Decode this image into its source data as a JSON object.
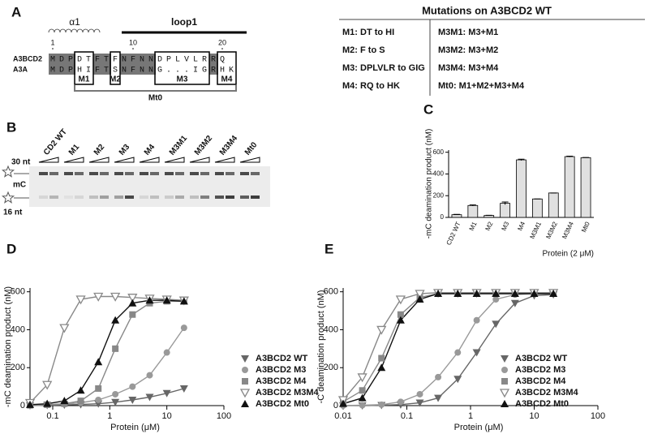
{
  "panel_labels": [
    "A",
    "B",
    "C",
    "D",
    "E"
  ],
  "alignment": {
    "helix": "α1",
    "loop": "loop1",
    "positions": [
      1,
      10,
      20
    ],
    "rows": [
      {
        "name": "A3BCD2",
        "sequence": "MDPDTFTFNFNNDPLVLRRQ"
      },
      {
        "name": "A3A",
        "sequence": "MDPHIFTSNFNNG...IGRHK"
      }
    ],
    "boxes": [
      "M1",
      "M2",
      "M3",
      "M4"
    ],
    "bracket": "Mt0"
  },
  "mutations": {
    "title": "Mutations on A3BCD2 WT",
    "left": [
      "M1: DT to HI",
      "M2: F to S",
      "M3: DPLVLR to GIG",
      "M4: RQ to HK"
    ],
    "right": [
      "M3M1: M3+M1",
      "M3M2: M3+M2",
      "M3M4: M3+M4",
      "Mt0: M1+M2+M3+M4"
    ]
  },
  "gel": {
    "lanes": [
      "CD2 WT",
      "M1",
      "M2",
      "M3",
      "M4",
      "M3M1",
      "M3M2",
      "M3M4",
      "Mt0"
    ],
    "side_labels": [
      "30 nt",
      "mC",
      "16 nt"
    ]
  },
  "chart_data": [
    {
      "type": "bar",
      "ylabel": "-mC deamination product (nM)",
      "xlabel": "Protein (2 μM)",
      "categories": [
        "CD2 WT",
        "M1",
        "M2",
        "M3",
        "M4",
        "M3M1",
        "M3M2",
        "M3M4",
        "Mt0"
      ],
      "values": [
        25,
        110,
        18,
        130,
        530,
        170,
        225,
        560,
        550
      ],
      "errors": [
        3,
        5,
        2,
        12,
        6,
        0,
        0,
        4,
        2
      ],
      "color": "#e0e0e0",
      "ylim": [
        0,
        620
      ],
      "yticks": [
        0,
        200,
        400,
        600
      ]
    },
    {
      "type": "scatter",
      "ylabel": "-mC deamination product (nM)",
      "xlabel": "Protein (μM)",
      "x": [
        0.04,
        0.08,
        0.16,
        0.31,
        0.63,
        1.25,
        2.5,
        5,
        10,
        20
      ],
      "xscale": "log",
      "xlim": [
        0.04,
        100
      ],
      "xticks": [
        0.1,
        1,
        10,
        100
      ],
      "ylim": [
        0,
        620
      ],
      "yticks": [
        0,
        200,
        400,
        600
      ],
      "series": [
        {
          "name": "A3BCD2 WT",
          "color": "#666666",
          "marker": "triangle-down",
          "values": [
            0,
            2,
            4,
            6,
            10,
            18,
            30,
            45,
            65,
            90
          ]
        },
        {
          "name": "A3BCD2 M3",
          "color": "#999999",
          "marker": "circle",
          "values": [
            0,
            4,
            8,
            15,
            30,
            60,
            100,
            160,
            280,
            410
          ]
        },
        {
          "name": "A3BCD2 M4",
          "color": "#888888",
          "marker": "square",
          "values": [
            2,
            5,
            10,
            25,
            90,
            300,
            480,
            540,
            550,
            550
          ]
        },
        {
          "name": "A3BCD2 M3M4",
          "color": "#888888",
          "marker": "triangle-down-open",
          "values": [
            15,
            110,
            410,
            560,
            575,
            575,
            570,
            565,
            560,
            555
          ]
        },
        {
          "name": "A3BCD2 Mt0",
          "color": "#111111",
          "marker": "triangle-up",
          "values": [
            5,
            10,
            25,
            80,
            230,
            450,
            540,
            555,
            555,
            550
          ]
        }
      ]
    },
    {
      "type": "scatter",
      "ylabel": "-C deamination product (nM)",
      "xlabel": "Protein (μM)",
      "x": [
        0.01,
        0.02,
        0.04,
        0.08,
        0.16,
        0.31,
        0.63,
        1.25,
        2.5,
        5,
        10,
        20
      ],
      "xscale": "log",
      "xlim": [
        0.01,
        100
      ],
      "xticks": [
        0.01,
        0.1,
        1,
        10,
        100
      ],
      "ylim": [
        0,
        620
      ],
      "yticks": [
        0,
        200,
        400,
        600
      ],
      "series": [
        {
          "name": "A3BCD2 WT",
          "color": "#666666",
          "marker": "triangle-down",
          "values": [
            0,
            0,
            2,
            5,
            15,
            40,
            140,
            280,
            430,
            540,
            580,
            585
          ]
        },
        {
          "name": "A3BCD2 M3",
          "color": "#999999",
          "marker": "circle",
          "values": [
            0,
            2,
            5,
            20,
            60,
            150,
            280,
            450,
            560,
            585,
            590,
            590
          ]
        },
        {
          "name": "A3BCD2 M4",
          "color": "#888888",
          "marker": "square",
          "values": [
            20,
            80,
            250,
            480,
            570,
            590,
            590,
            590,
            590,
            590,
            590,
            590
          ]
        },
        {
          "name": "A3BCD2 M3M4",
          "color": "#888888",
          "marker": "triangle-down-open",
          "values": [
            30,
            150,
            400,
            560,
            590,
            595,
            595,
            595,
            595,
            595,
            595,
            595
          ]
        },
        {
          "name": "A3BCD2 Mt0",
          "color": "#111111",
          "marker": "triangle-up",
          "values": [
            10,
            40,
            200,
            450,
            560,
            590,
            590,
            590,
            590,
            590,
            590,
            590
          ]
        }
      ]
    }
  ]
}
